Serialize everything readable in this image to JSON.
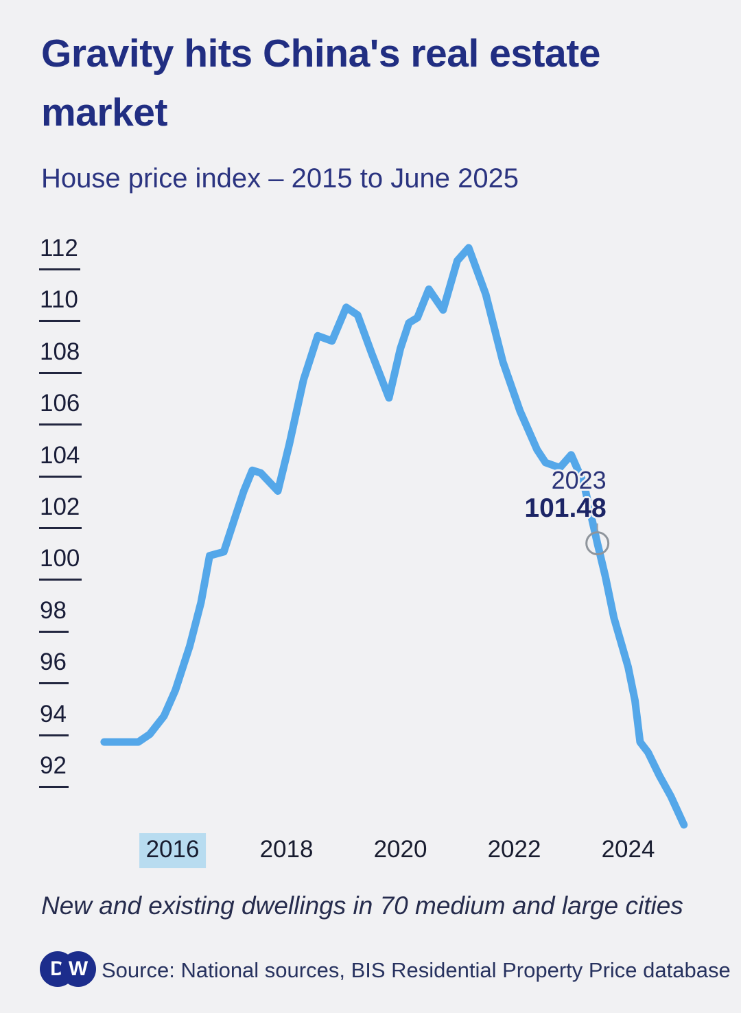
{
  "header": {
    "title": "Gravity hits China's real estate market",
    "subtitle": "House price index – 2015 to June 2025"
  },
  "chart_data": {
    "type": "line",
    "title": "House price index – 2015 to June 2025",
    "xlabel": "",
    "ylabel": "",
    "x_range": [
      2015,
      2025.5
    ],
    "ylim": [
      90,
      113
    ],
    "grid": false,
    "legend_position": "none",
    "y_ticks": [
      112,
      110,
      108,
      106,
      104,
      102,
      100,
      98,
      96,
      94,
      92
    ],
    "x_tick_years": [
      2016,
      2018,
      2020,
      2022,
      2024
    ],
    "highlighted_x_tick": 2016,
    "series": [
      {
        "name": "House price index",
        "points": [
          [
            2015.3,
            93.8
          ],
          [
            2015.6,
            93.8
          ],
          [
            2015.9,
            93.8
          ],
          [
            2016.1,
            94.1
          ],
          [
            2016.35,
            94.8
          ],
          [
            2016.55,
            95.8
          ],
          [
            2016.8,
            97.5
          ],
          [
            2017.0,
            99.2
          ],
          [
            2017.15,
            101.0
          ],
          [
            2017.4,
            101.15
          ],
          [
            2017.6,
            102.5
          ],
          [
            2017.75,
            103.5
          ],
          [
            2017.9,
            104.3
          ],
          [
            2018.05,
            104.2
          ],
          [
            2018.35,
            103.5
          ],
          [
            2018.55,
            105.3
          ],
          [
            2018.8,
            107.8
          ],
          [
            2019.05,
            109.5
          ],
          [
            2019.3,
            109.3
          ],
          [
            2019.55,
            110.6
          ],
          [
            2019.75,
            110.3
          ],
          [
            2020.0,
            108.8
          ],
          [
            2020.3,
            107.1
          ],
          [
            2020.5,
            109.0
          ],
          [
            2020.65,
            110.0
          ],
          [
            2020.8,
            110.2
          ],
          [
            2021.0,
            111.3
          ],
          [
            2021.25,
            110.5
          ],
          [
            2021.5,
            112.4
          ],
          [
            2021.7,
            112.9
          ],
          [
            2022.0,
            111.1
          ],
          [
            2022.3,
            108.5
          ],
          [
            2022.6,
            106.6
          ],
          [
            2022.9,
            105.1
          ],
          [
            2023.05,
            104.6
          ],
          [
            2023.3,
            104.4
          ],
          [
            2023.5,
            104.9
          ],
          [
            2023.72,
            103.8
          ],
          [
            2023.96,
            101.48
          ],
          [
            2024.1,
            100.2
          ],
          [
            2024.25,
            98.6
          ],
          [
            2024.5,
            96.7
          ],
          [
            2024.62,
            95.4
          ],
          [
            2024.71,
            93.8
          ],
          [
            2024.85,
            93.4
          ],
          [
            2025.05,
            92.5
          ],
          [
            2025.25,
            91.7
          ],
          [
            2025.48,
            90.6
          ]
        ]
      }
    ],
    "annotation": {
      "year_label": "2023",
      "value_label": "101.48",
      "x": 2023.96,
      "y": 101.48
    }
  },
  "footer": {
    "note": "New and existing dwellings in 70 medium and large cities",
    "source": "Source: National sources, BIS Residential Property Price database",
    "logo_letter_d": "D",
    "logo_letter_w": "W"
  },
  "colors": {
    "background": "#f1f1f3",
    "line": "#54a7e9",
    "navy_title": "#212e82",
    "tick_text": "#191d38",
    "x_highlight": "#b8dcf0",
    "marker_ring": "#8f959c"
  }
}
